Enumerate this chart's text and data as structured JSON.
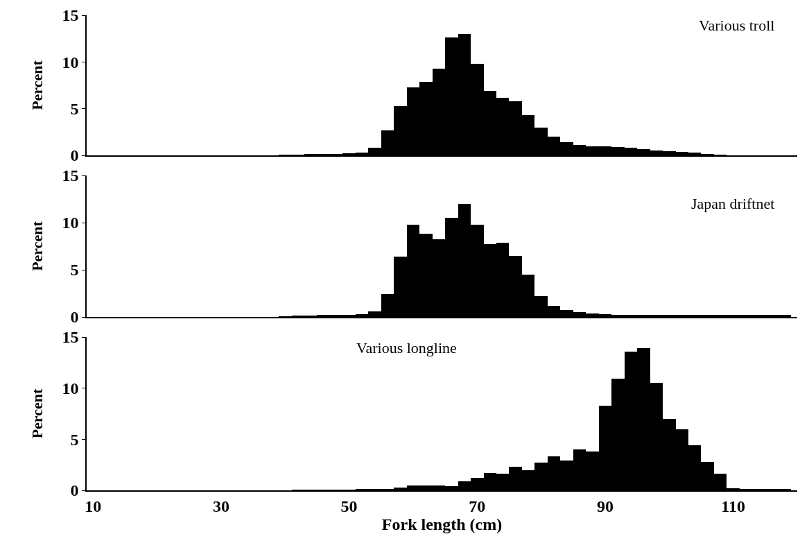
{
  "chart_data": [
    {
      "type": "histogram",
      "title": "Various troll",
      "ylabel": "Percent",
      "color": "#000000",
      "bins": [
        39,
        41,
        43,
        45,
        47,
        49,
        51,
        53,
        55,
        57,
        59,
        61,
        63,
        65,
        67,
        69,
        71,
        73,
        75,
        77,
        79,
        81,
        83,
        85,
        87,
        89,
        91,
        93,
        95,
        97,
        99,
        101,
        103,
        105,
        107,
        109
      ],
      "values": [
        0.05,
        0.05,
        0.1,
        0.1,
        0.15,
        0.2,
        0.3,
        0.8,
        2.7,
        5.3,
        7.3,
        7.9,
        9.3,
        12.6,
        13.0,
        9.8,
        6.9,
        6.2,
        5.8,
        4.3,
        3.0,
        2.0,
        1.4,
        1.1,
        1.0,
        0.95,
        0.9,
        0.8,
        0.7,
        0.55,
        0.45,
        0.4,
        0.3,
        0.1,
        0.05
      ],
      "xlim": [
        9,
        120
      ],
      "xticks": [
        10,
        30,
        50,
        70,
        90,
        110
      ],
      "ylim": [
        0,
        15
      ],
      "yticks": [
        0,
        5,
        10,
        15
      ],
      "tick_labels": "y"
    },
    {
      "type": "histogram",
      "title": "Japan driftnet",
      "ylabel": "Percent",
      "color": "#000000",
      "bins": [
        39,
        41,
        43,
        45,
        47,
        49,
        51,
        53,
        55,
        57,
        59,
        61,
        63,
        65,
        67,
        69,
        71,
        73,
        75,
        77,
        79,
        81,
        83,
        85,
        87,
        89,
        91,
        93,
        95,
        97,
        99,
        101,
        103,
        105,
        107,
        109,
        111,
        113,
        115,
        117,
        119
      ],
      "values": [
        0.05,
        0.1,
        0.15,
        0.2,
        0.2,
        0.25,
        0.3,
        0.6,
        2.4,
        6.4,
        9.8,
        8.8,
        8.2,
        10.5,
        12.0,
        9.8,
        7.7,
        7.9,
        6.5,
        4.5,
        2.2,
        1.2,
        0.7,
        0.5,
        0.4,
        0.3,
        0.25,
        0.2,
        0.2,
        0.2,
        0.2,
        0.2,
        0.2,
        0.2,
        0.2,
        0.2,
        0.2,
        0.2,
        0.2,
        0.2
      ],
      "xlim": [
        9,
        120
      ],
      "xticks": [
        10,
        30,
        50,
        70,
        90,
        110
      ],
      "ylim": [
        0,
        15
      ],
      "yticks": [
        0,
        5,
        10,
        15
      ],
      "tick_labels": "y"
    },
    {
      "type": "histogram",
      "title": "Various longline",
      "ylabel": "Percent",
      "xlabel": "Fork length (cm)",
      "color": "#000000",
      "bins": [
        41,
        43,
        45,
        47,
        49,
        51,
        53,
        55,
        57,
        59,
        61,
        63,
        65,
        67,
        69,
        71,
        73,
        75,
        77,
        79,
        81,
        83,
        85,
        87,
        89,
        91,
        93,
        95,
        97,
        99,
        101,
        103,
        105,
        107,
        109,
        111,
        113,
        115,
        117,
        119
      ],
      "values": [
        0.05,
        0.05,
        0.05,
        0.05,
        0.05,
        0.1,
        0.1,
        0.1,
        0.3,
        0.5,
        0.5,
        0.5,
        0.4,
        0.9,
        1.2,
        1.7,
        1.6,
        2.3,
        2.0,
        2.7,
        3.3,
        2.9,
        4.0,
        3.8,
        8.3,
        10.9,
        13.6,
        13.9,
        10.5,
        7.0,
        6.0,
        4.4,
        2.8,
        1.6,
        0.2,
        0.1,
        0.1,
        0.1,
        0.1
      ],
      "xlim": [
        9,
        120
      ],
      "xticks": [
        10,
        30,
        50,
        70,
        90,
        110
      ],
      "ylim": [
        0,
        15
      ],
      "yticks": [
        0,
        5,
        10,
        15
      ]
    }
  ]
}
